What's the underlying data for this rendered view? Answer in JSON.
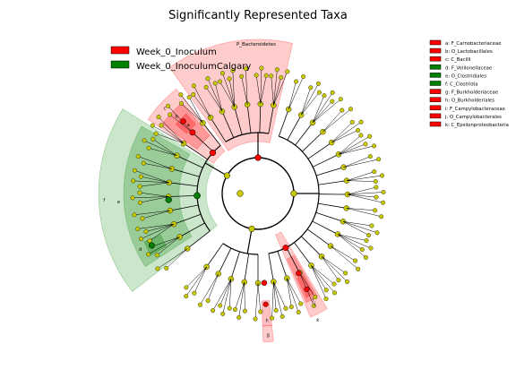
{
  "chart_data": {
    "type": "cladogram",
    "title": "Significantly Represented Taxa",
    "colors": {
      "group_a": "#ff0000",
      "group_b": "#008000",
      "node_default": "#c8c800"
    },
    "legend_groups": [
      {
        "name": "Week_0_Inoculum",
        "color": "#ff0000"
      },
      {
        "name": "Week_0_InoculumCalgary",
        "color": "#008000"
      }
    ],
    "clade_labels": [
      {
        "letter": "a",
        "name": "F_Carnobacteriaceae",
        "group": "Week_0_Inoculum"
      },
      {
        "letter": "b",
        "name": "O_Lactobacillales",
        "group": "Week_0_Inoculum"
      },
      {
        "letter": "c",
        "name": "C_Bacilli",
        "group": "Week_0_Inoculum"
      },
      {
        "letter": "d",
        "name": "F_Veillonellaceae",
        "group": "Week_0_InoculumCalgary"
      },
      {
        "letter": "e",
        "name": "O_Clostridiales",
        "group": "Week_0_InoculumCalgary"
      },
      {
        "letter": "f",
        "name": "C_Clostridia",
        "group": "Week_0_InoculumCalgary"
      },
      {
        "letter": "g",
        "name": "F_Burkholderiaceae",
        "group": "Week_0_Inoculum"
      },
      {
        "letter": "h",
        "name": "O_Burkholderiales",
        "group": "Week_0_Inoculum"
      },
      {
        "letter": "i",
        "name": "F_Campylobacteraceae",
        "group": "Week_0_Inoculum"
      },
      {
        "letter": "j",
        "name": "O_Campylobacterales",
        "group": "Week_0_Inoculum"
      },
      {
        "letter": "k",
        "name": "C_Epsilonproteobacteria",
        "group": "Week_0_Inoculum"
      }
    ],
    "phylum_labels": [
      {
        "name": "P_Bacteroidetes",
        "group": "Week_0_Inoculum"
      }
    ],
    "sector_letters": [
      "a",
      "b",
      "c",
      "d",
      "e",
      "f",
      "g",
      "h",
      "i",
      "j",
      "k"
    ]
  }
}
